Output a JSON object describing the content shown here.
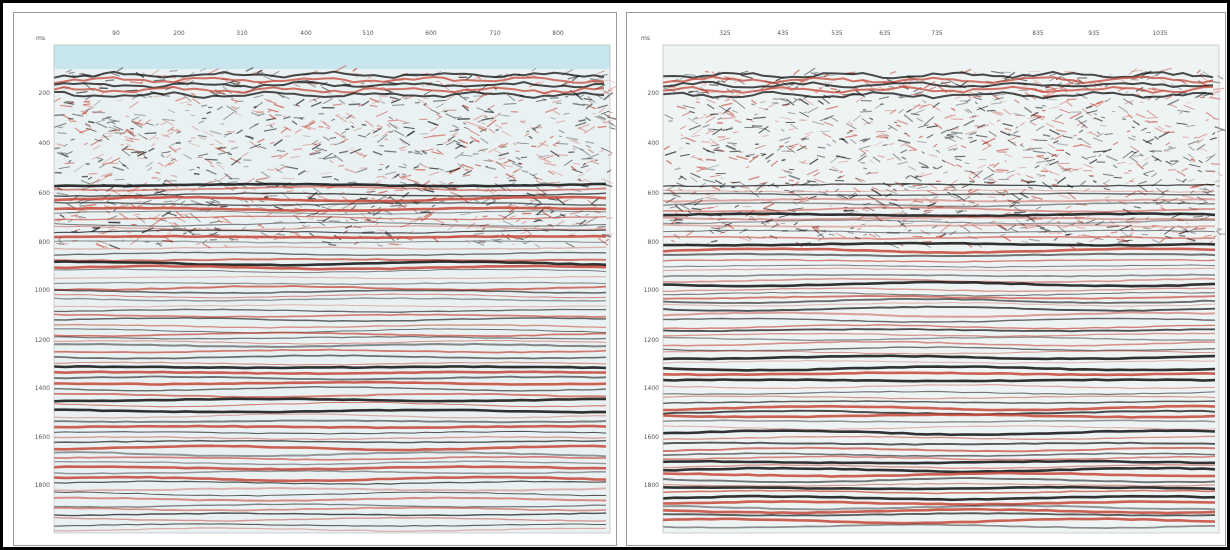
{
  "panels": [
    {
      "id": "left",
      "unit": "ms",
      "traces": [
        "90",
        "200",
        "310",
        "400",
        "510",
        "600",
        "710",
        "800"
      ],
      "times": [
        "200",
        "400",
        "600",
        "800",
        "1000",
        "1200",
        "1400",
        "1600",
        "1800"
      ],
      "colors": {
        "sky": "#c8e6ee",
        "peak": "#0f0f0f",
        "trough": "#c64535",
        "background": "#e9f1f2"
      }
    },
    {
      "id": "right",
      "unit": "ms",
      "traces": [
        "325",
        "435",
        "535",
        "635",
        "735",
        "835",
        "935",
        "1035"
      ],
      "times": [
        "200",
        "400",
        "600",
        "800",
        "1000",
        "1200",
        "1400",
        "1600",
        "1800"
      ],
      "colors": {
        "peak": "#0f0f0f",
        "trough": "#c64535",
        "background": "#eef3f4"
      }
    }
  ]
}
